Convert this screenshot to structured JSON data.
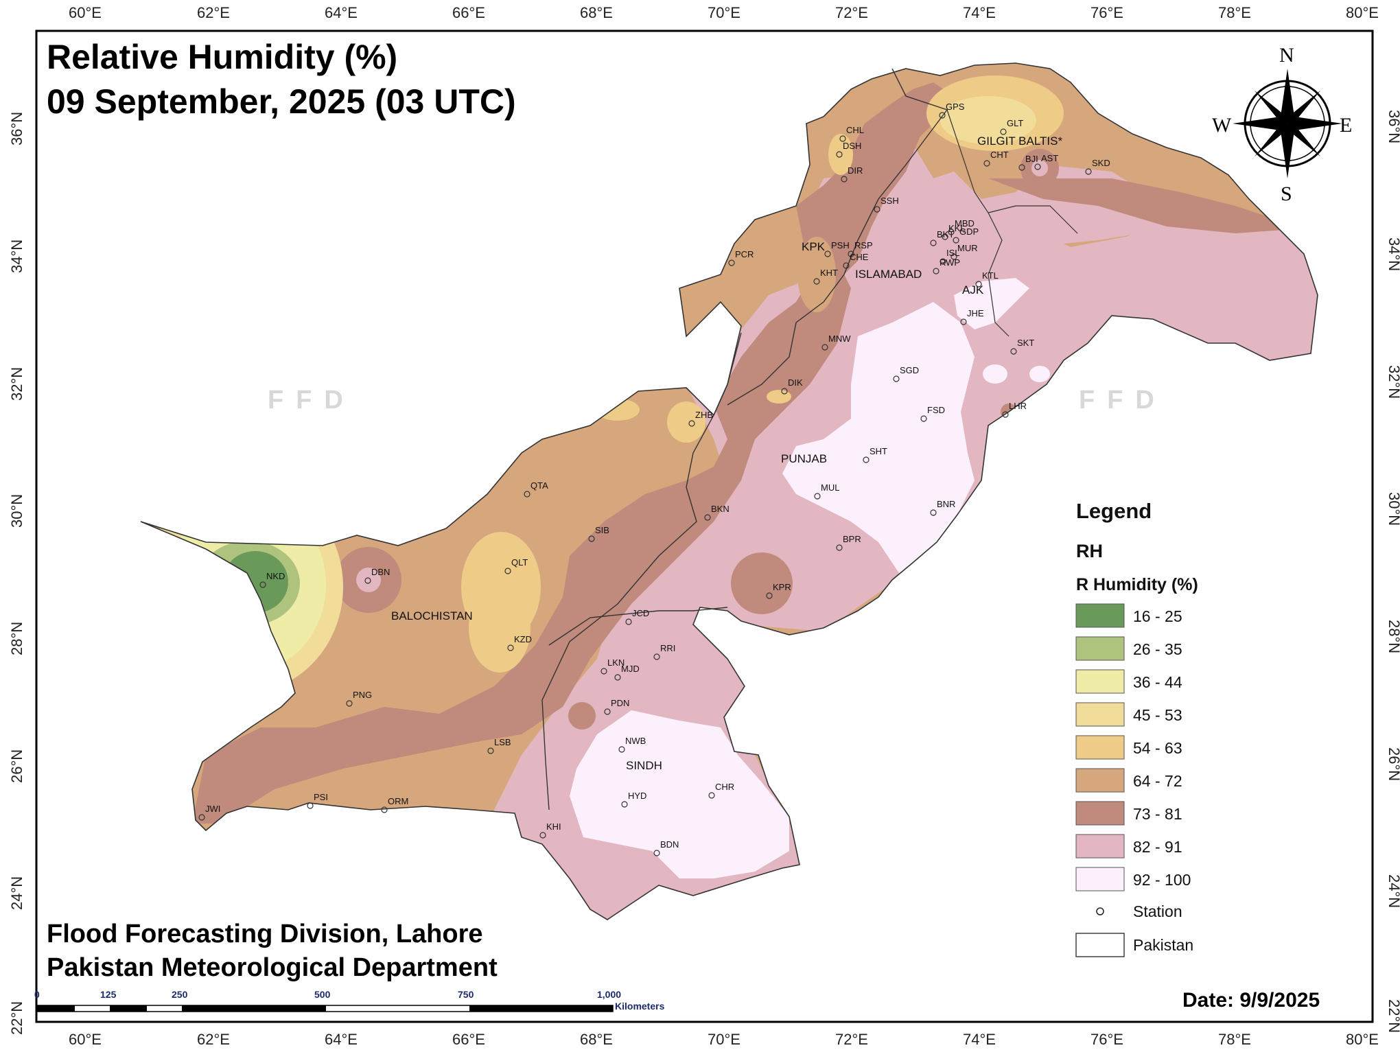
{
  "title": {
    "line1": "Relative Humidity (%)",
    "line2": "09 September, 2025 (03 UTC)"
  },
  "footer": {
    "line1": "Flood Forecasting Division, Lahore",
    "line2": "Pakistan Meteorological Department",
    "date": "Date: 9/9/2025"
  },
  "watermark": "FFD",
  "axes": {
    "lon_labels": [
      "60°E",
      "62°E",
      "64°E",
      "66°E",
      "68°E",
      "70°E",
      "72°E",
      "74°E",
      "76°E",
      "78°E",
      "80°E"
    ],
    "lat_labels": [
      "22°N",
      "24°N",
      "26°N",
      "28°N",
      "30°N",
      "32°N",
      "34°N",
      "36°N"
    ]
  },
  "compass": {
    "n": "N",
    "s": "S",
    "e": "E",
    "w": "W"
  },
  "regions": [
    "BALOCHISTAN",
    "SINDH",
    "PUNJAB",
    "KPK",
    "ISLAMABAD",
    "AJK",
    "GILGIT BALTIS*"
  ],
  "stations": [
    "NKD",
    "DBN",
    "QLT",
    "KZD",
    "PNG",
    "JWI",
    "PSI",
    "ORM",
    "LSB",
    "QTA",
    "SIB",
    "ZHB",
    "BKN",
    "KPR",
    "JCD",
    "RRI",
    "LKN",
    "MJD",
    "PDN",
    "NWB",
    "HYD",
    "CHR",
    "BDN",
    "KHI",
    "SHT",
    "MUL",
    "BPR",
    "BNR",
    "FSD",
    "SGD",
    "LHR",
    "SKT",
    "JHE",
    "KTL",
    "RWP",
    "MUR",
    "ISL",
    "GDP",
    "KKL",
    "BKT",
    "MBD",
    "DIK",
    "MNW",
    "PSH",
    "RSP",
    "CHE",
    "KHT",
    "PCR",
    "SSH",
    "DIR",
    "DSH",
    "CHL",
    "GPS",
    "GLT",
    "CHT",
    "BJI",
    "AST",
    "SKD"
  ],
  "legend": {
    "title": "Legend",
    "layer": "RH",
    "field": "R Humidity (%)",
    "classes": [
      {
        "label": "16 - 25",
        "color": "#6a9a5a"
      },
      {
        "label": "26 - 35",
        "color": "#aec47e"
      },
      {
        "label": "36 - 44",
        "color": "#eeeca6"
      },
      {
        "label": "45 - 53",
        "color": "#f1dc9a"
      },
      {
        "label": "54 - 63",
        "color": "#eecb86"
      },
      {
        "label": "64 - 72",
        "color": "#d6a77c"
      },
      {
        "label": "73 - 81",
        "color": "#c08a7c"
      },
      {
        "label": "82 - 91",
        "color": "#e2b7c1"
      },
      {
        "label": "92 - 100",
        "color": "#fbf0fb"
      }
    ],
    "station_label": "Station",
    "pakistan_label": "Pakistan"
  },
  "scalebar": {
    "ticks": [
      "0",
      "125",
      "250",
      "500",
      "750",
      "1,000"
    ],
    "unit": "Kilometers"
  }
}
